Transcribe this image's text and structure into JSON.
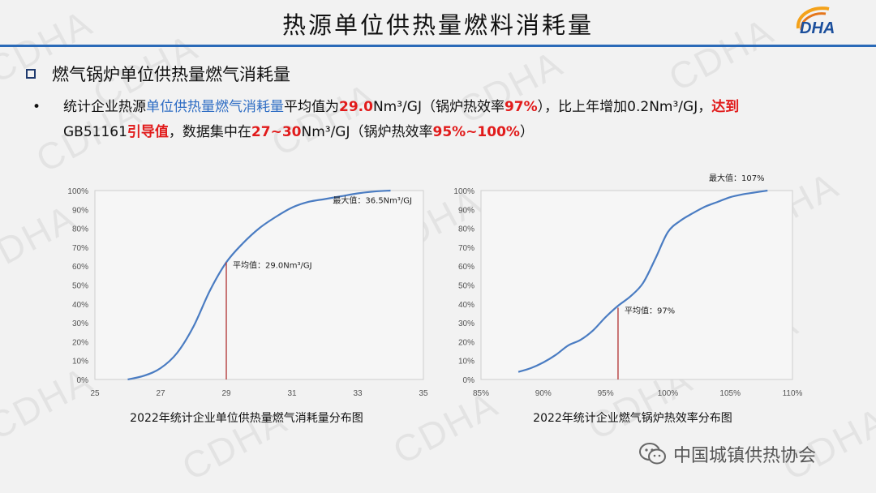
{
  "page": {
    "title": "热源单位供热量燃料消耗量",
    "logo_text": "DHA",
    "watermark_text": "CDHA",
    "section_heading": "燃气锅炉单位供热量燃气消耗量",
    "bullet": {
      "p1": "统计企业热源",
      "p2": "单位供热量燃气消耗量",
      "p3": "平均值为",
      "p4": "29.0",
      "p5": "Nm³/GJ（锅炉热效率",
      "p6": "97%",
      "p7": "），比上年增加0.2Nm³/GJ，",
      "p8": "达到",
      "p9": "GB51161",
      "p10": "引导值",
      "p11": "，数据集中在",
      "p12": "27~30",
      "p13": "Nm³/GJ（锅炉热效率",
      "p14": "95%~100%",
      "p15": "）"
    },
    "footer_text": "中国城镇供热协会",
    "colors": {
      "accent_blue": "#2e6dc4",
      "highlight_red": "#e11b1b",
      "curve": "#4a7cc2",
      "marker_line": "#b03030"
    }
  },
  "chart_data": [
    {
      "type": "line",
      "title": "2022年统计企业单位供热量燃气消耗量分布图",
      "xlim": [
        25,
        35
      ],
      "ylim": [
        0,
        100
      ],
      "x_ticks": [
        25,
        27,
        29,
        31,
        33,
        35
      ],
      "x_tick_labels": [
        "25",
        "27",
        "29",
        "31",
        "33",
        "35"
      ],
      "y_ticks": [
        0,
        10,
        20,
        30,
        40,
        50,
        60,
        70,
        80,
        90,
        100
      ],
      "y_tick_labels": [
        "0%",
        "10%",
        "20%",
        "30%",
        "40%",
        "50%",
        "60%",
        "70%",
        "80%",
        "90%",
        "100%"
      ],
      "grid": false,
      "series": [
        {
          "x": [
            26.0,
            26.5,
            27.0,
            27.5,
            28.0,
            28.5,
            29.0,
            29.5,
            30.0,
            30.5,
            31.0,
            31.5,
            32.0,
            32.5,
            33.0,
            33.5,
            34.0
          ],
          "y": [
            0,
            2,
            6,
            14,
            28,
            47,
            62,
            72,
            80,
            86,
            91,
            94,
            95.5,
            97,
            98.5,
            99.5,
            100
          ]
        }
      ],
      "annotations": [
        {
          "text": "平均值：29.0Nm³/GJ",
          "x": 29.0,
          "y": 62,
          "vline": true
        },
        {
          "text": "最大值：36.5Nm³/GJ",
          "x": 31.0,
          "y": 92
        }
      ]
    },
    {
      "type": "line",
      "title": "2022年统计企业燃气锅炉热效率分布图",
      "xlim": [
        85,
        110
      ],
      "ylim": [
        0,
        100
      ],
      "x_ticks": [
        85,
        90,
        95,
        100,
        105,
        110
      ],
      "x_tick_labels": [
        "85%",
        "90%",
        "95%",
        "100%",
        "105%",
        "110%"
      ],
      "y_ticks": [
        0,
        10,
        20,
        30,
        40,
        50,
        60,
        70,
        80,
        90,
        100
      ],
      "y_tick_labels": [
        "0%",
        "10%",
        "20%",
        "30%",
        "40%",
        "50%",
        "60%",
        "70%",
        "80%",
        "90%",
        "100%"
      ],
      "grid": false,
      "series": [
        {
          "x": [
            88,
            89,
            90,
            91,
            92,
            93,
            94,
            95,
            96,
            97,
            98,
            99,
            100,
            101,
            102,
            103,
            104,
            105,
            106,
            107,
            108
          ],
          "y": [
            4,
            6,
            9,
            13,
            18,
            21,
            26,
            33,
            39,
            44,
            51,
            64,
            78,
            84,
            88,
            91.5,
            94,
            96.5,
            98,
            99,
            100
          ]
        }
      ],
      "annotations": [
        {
          "text": "平均值：97%",
          "x": 96.0,
          "y": 38,
          "vline": true
        },
        {
          "text": "最大值：107%",
          "x": 108,
          "y": 100,
          "above": true
        }
      ]
    }
  ]
}
